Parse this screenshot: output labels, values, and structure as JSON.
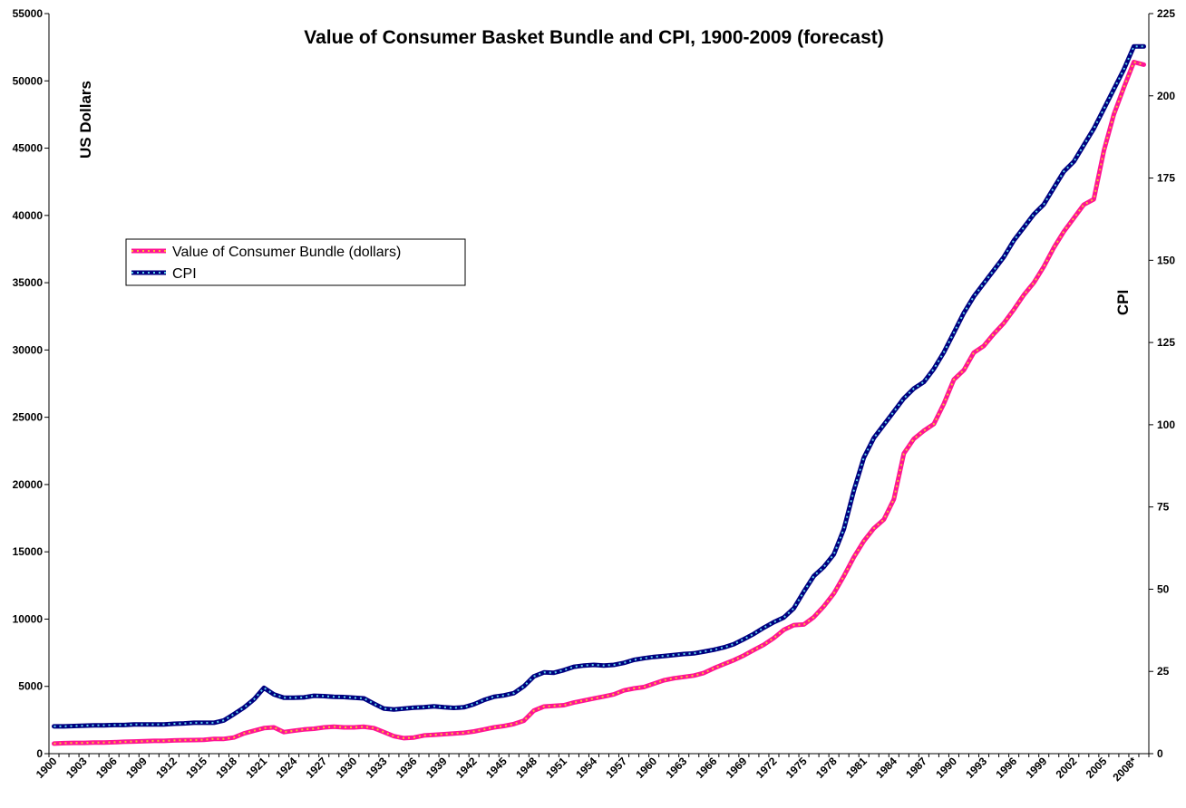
{
  "chart_data": {
    "type": "line",
    "title": "Value of Consumer Basket Bundle and CPI, 1900-2009 (forecast)",
    "ylabel": "US Dollars",
    "y2label": "CPI",
    "xlabel": "",
    "ylim": [
      0,
      55000
    ],
    "y2lim": [
      0,
      225
    ],
    "yticks": [
      0,
      5000,
      10000,
      15000,
      20000,
      25000,
      30000,
      35000,
      40000,
      45000,
      50000,
      55000
    ],
    "y2ticks": [
      0,
      25,
      50,
      75,
      100,
      125,
      150,
      175,
      200,
      225
    ],
    "x_tick_labels": [
      "1900",
      "1903",
      "1906",
      "1909",
      "1912",
      "1915",
      "1918",
      "1921",
      "1924",
      "1927",
      "1930",
      "1933",
      "1936",
      "1939",
      "1942",
      "1945",
      "1948",
      "1951",
      "1954",
      "1957",
      "1960",
      "1963",
      "1966",
      "1969",
      "1972",
      "1975",
      "1978",
      "1981",
      "1984",
      "1987",
      "1990",
      "1993",
      "1996",
      "1999",
      "2002",
      "2005",
      "2008*"
    ],
    "x": [
      1900,
      1901,
      1902,
      1903,
      1904,
      1905,
      1906,
      1907,
      1908,
      1909,
      1910,
      1911,
      1912,
      1913,
      1914,
      1915,
      1916,
      1917,
      1918,
      1919,
      1920,
      1921,
      1922,
      1923,
      1924,
      1925,
      1926,
      1927,
      1928,
      1929,
      1930,
      1931,
      1932,
      1933,
      1934,
      1935,
      1936,
      1937,
      1938,
      1939,
      1940,
      1941,
      1942,
      1943,
      1944,
      1945,
      1946,
      1947,
      1948,
      1949,
      1950,
      1951,
      1952,
      1953,
      1954,
      1955,
      1956,
      1957,
      1958,
      1959,
      1960,
      1961,
      1962,
      1963,
      1964,
      1965,
      1966,
      1967,
      1968,
      1969,
      1970,
      1971,
      1972,
      1973,
      1974,
      1975,
      1976,
      1977,
      1978,
      1979,
      1980,
      1981,
      1982,
      1983,
      1984,
      1985,
      1986,
      1987,
      1988,
      1989,
      1990,
      1991,
      1992,
      1993,
      1994,
      1995,
      1996,
      1997,
      1998,
      1999,
      2000,
      2001,
      2002,
      2003,
      2004,
      2005,
      2006,
      2007,
      2008,
      2009
    ],
    "series": [
      {
        "name": "Value of Consumer Bundle (dollars)",
        "axis": "left",
        "color": "#ff1493",
        "dot_color": "#f4c430",
        "values": [
          750,
          780,
          800,
          800,
          820,
          830,
          850,
          880,
          900,
          920,
          950,
          950,
          980,
          1000,
          1010,
          1030,
          1100,
          1100,
          1200,
          1500,
          1700,
          1900,
          1950,
          1600,
          1700,
          1800,
          1850,
          1950,
          2000,
          1950,
          1950,
          2000,
          1900,
          1600,
          1300,
          1150,
          1200,
          1350,
          1400,
          1450,
          1500,
          1550,
          1650,
          1800,
          1950,
          2050,
          2200,
          2450,
          3200,
          3500,
          3550,
          3600,
          3800,
          3950,
          4100,
          4250,
          4400,
          4700,
          4850,
          4950,
          5200,
          5450,
          5600,
          5700,
          5800,
          6000,
          6350,
          6650,
          6950,
          7300,
          7700,
          8100,
          8600,
          9200,
          9550,
          9600,
          10150,
          10950,
          11900,
          13200,
          14600,
          15800,
          16750,
          17400,
          18900,
          22300,
          23400,
          24000,
          24500,
          26000,
          27800,
          28500,
          29800,
          30300,
          31200,
          32000,
          33000,
          34100,
          35000,
          36200,
          37600,
          38800,
          39800,
          40800,
          41200,
          44800,
          47500,
          49500,
          51400,
          51200
        ]
      },
      {
        "name": "CPI",
        "axis": "right",
        "color": "#000080",
        "dot_color": "#5fd3e6",
        "values": [
          8.3,
          8.3,
          8.4,
          8.5,
          8.6,
          8.6,
          8.7,
          8.7,
          8.9,
          8.9,
          8.9,
          8.9,
          9.1,
          9.2,
          9.4,
          9.4,
          9.4,
          10.1,
          12,
          14,
          16.5,
          20,
          18,
          17,
          17,
          17.1,
          17.6,
          17.5,
          17.3,
          17.2,
          17,
          16.8,
          15.2,
          13.7,
          13.4,
          13.7,
          14,
          14.1,
          14.4,
          14.1,
          13.9,
          14.1,
          15,
          16.3,
          17.3,
          17.7,
          18.4,
          20.5,
          23.5,
          24.7,
          24.6,
          25.4,
          26.4,
          26.8,
          27,
          26.8,
          27,
          27.6,
          28.5,
          29,
          29.4,
          29.7,
          30,
          30.3,
          30.5,
          31,
          31.6,
          32.3,
          33.3,
          34.8,
          36.4,
          38.3,
          40,
          41.4,
          44.2,
          49.3,
          54,
          56.8,
          60.6,
          68.3,
          80,
          90,
          96,
          100,
          104,
          108,
          111,
          113,
          117,
          122,
          128,
          134,
          139,
          143,
          147,
          151,
          156,
          160,
          164,
          167,
          172,
          177,
          180,
          185,
          190,
          196,
          202,
          208,
          215,
          215
        ]
      }
    ],
    "legend": {
      "position": "upper-left",
      "entries": [
        "Value of Consumer Bundle (dollars)",
        "CPI"
      ]
    }
  }
}
